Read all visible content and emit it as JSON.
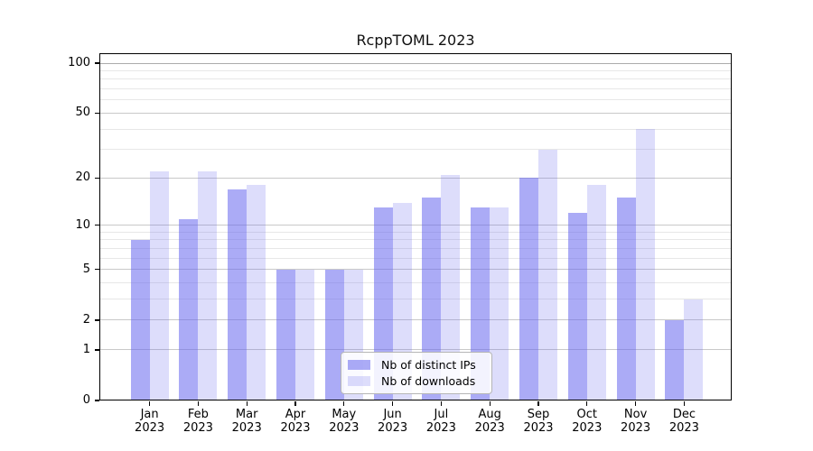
{
  "chart_data": {
    "type": "bar",
    "title": "RcppTOML 2023",
    "x_year": "2023",
    "categories": [
      "Jan",
      "Feb",
      "Mar",
      "Apr",
      "May",
      "Jun",
      "Jul",
      "Aug",
      "Sep",
      "Oct",
      "Nov",
      "Dec"
    ],
    "series": [
      {
        "name": "Nb of distinct IPs",
        "color": "rgba(102,102,238,0.55)",
        "values": [
          8,
          11,
          17,
          5,
          5,
          13,
          15,
          13,
          20,
          12,
          15,
          2
        ]
      },
      {
        "name": "Nb of downloads",
        "color": "rgba(102,102,238,0.22)",
        "values": [
          22,
          22,
          18,
          5,
          5,
          14,
          21,
          13,
          30,
          18,
          40,
          3
        ]
      }
    ],
    "scale": "log1p",
    "ylim": [
      0,
      115
    ],
    "y_major_ticks": [
      0,
      1,
      2,
      5,
      10,
      20,
      50,
      100
    ],
    "y_major_gridlines": [
      1,
      2,
      5,
      10,
      20,
      50,
      100
    ],
    "y_minor_gridlines": [
      3,
      4,
      6,
      7,
      8,
      9,
      30,
      40,
      60,
      70,
      80,
      90
    ],
    "grid": "on",
    "legend_position": "lower center",
    "colors": {
      "major_grid": "#c9c9c9",
      "grid_100": "#ababab",
      "minor_grid": "#e7e7e7",
      "axis": "#000000",
      "background": "#ffffff"
    }
  }
}
